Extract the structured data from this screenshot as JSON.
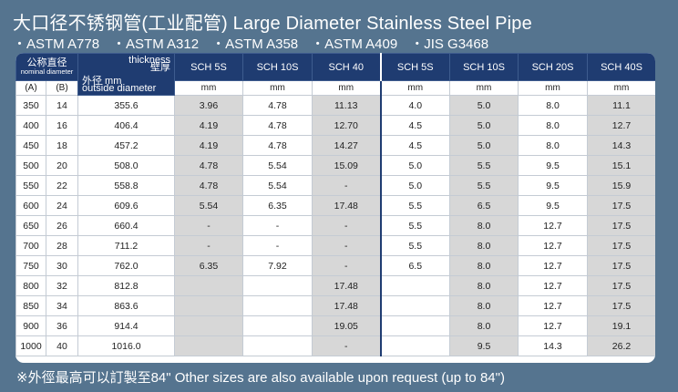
{
  "title": "大口径不锈钢管(工业配管) Large Diameter Stainless Steel Pipe",
  "standards": [
    "・ASTM A778",
    "・ASTM A312",
    "・ASTM A358",
    "・ASTM A409",
    "・JIS G3468"
  ],
  "table": {
    "nominal_cn": "公称直径",
    "nominal_en": "nominal diameter",
    "thickness_en": "thickness",
    "thickness_cn": "壁厚",
    "od_cn": "外径 mm",
    "od_en": "outside diameter",
    "col_a": "(A)",
    "col_b": "(B)",
    "schedules": [
      "SCH 5S",
      "SCH 10S",
      "SCH 40",
      "SCH 5S",
      "SCH 10S",
      "SCH 20S",
      "SCH 40S"
    ],
    "unit": "mm",
    "rows": [
      {
        "a": "350",
        "b": "14",
        "od": "355.6",
        "v": [
          "3.96",
          "4.78",
          "11.13",
          "4.0",
          "5.0",
          "8.0",
          "11.1"
        ]
      },
      {
        "a": "400",
        "b": "16",
        "od": "406.4",
        "v": [
          "4.19",
          "4.78",
          "12.70",
          "4.5",
          "5.0",
          "8.0",
          "12.7"
        ]
      },
      {
        "a": "450",
        "b": "18",
        "od": "457.2",
        "v": [
          "4.19",
          "4.78",
          "14.27",
          "4.5",
          "5.0",
          "8.0",
          "14.3"
        ]
      },
      {
        "a": "500",
        "b": "20",
        "od": "508.0",
        "v": [
          "4.78",
          "5.54",
          "15.09",
          "5.0",
          "5.5",
          "9.5",
          "15.1"
        ]
      },
      {
        "a": "550",
        "b": "22",
        "od": "558.8",
        "v": [
          "4.78",
          "5.54",
          "-",
          "5.0",
          "5.5",
          "9.5",
          "15.9"
        ]
      },
      {
        "a": "600",
        "b": "24",
        "od": "609.6",
        "v": [
          "5.54",
          "6.35",
          "17.48",
          "5.5",
          "6.5",
          "9.5",
          "17.5"
        ]
      },
      {
        "a": "650",
        "b": "26",
        "od": "660.4",
        "v": [
          "-",
          "-",
          "-",
          "5.5",
          "8.0",
          "12.7",
          "17.5"
        ]
      },
      {
        "a": "700",
        "b": "28",
        "od": "711.2",
        "v": [
          "-",
          "-",
          "-",
          "5.5",
          "8.0",
          "12.7",
          "17.5"
        ]
      },
      {
        "a": "750",
        "b": "30",
        "od": "762.0",
        "v": [
          "6.35",
          "7.92",
          "-",
          "6.5",
          "8.0",
          "12.7",
          "17.5"
        ]
      },
      {
        "a": "800",
        "b": "32",
        "od": "812.8",
        "v": [
          "",
          "",
          "17.48",
          "",
          "8.0",
          "12.7",
          "17.5"
        ]
      },
      {
        "a": "850",
        "b": "34",
        "od": "863.6",
        "v": [
          "",
          "",
          "17.48",
          "",
          "8.0",
          "12.7",
          "17.5"
        ]
      },
      {
        "a": "900",
        "b": "36",
        "od": "914.4",
        "v": [
          "",
          "",
          "19.05",
          "",
          "8.0",
          "12.7",
          "19.1"
        ]
      },
      {
        "a": "1000",
        "b": "40",
        "od": "1016.0",
        "v": [
          "",
          "",
          "-",
          "",
          "9.5",
          "14.3",
          "26.2"
        ]
      }
    ]
  },
  "note": "※外徑最高可以訂製至84\" Other sizes are also available upon request (up to 84\")"
}
